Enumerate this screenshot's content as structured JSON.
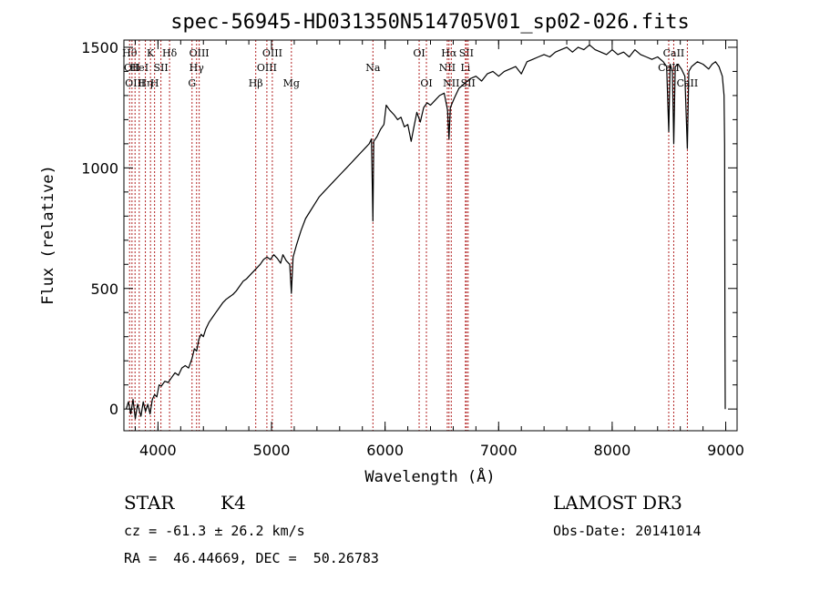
{
  "chart_data": {
    "type": "line",
    "title": "spec-56945-HD031350N514705V01_sp02-026.fits",
    "xlabel": "Wavelength (Å)",
    "ylabel": "Flux (relative)",
    "xlim": [
      3700,
      9100
    ],
    "ylim": [
      -90,
      1530
    ],
    "xticks": [
      4000,
      5000,
      6000,
      7000,
      8000,
      9000
    ],
    "yticks": [
      0,
      500,
      1000,
      1500
    ],
    "line_color": "#000000",
    "marker_color": "#b22222",
    "series": [
      {
        "name": "spectrum",
        "points": [
          [
            3720,
            0
          ],
          [
            3740,
            30
          ],
          [
            3760,
            -20
          ],
          [
            3780,
            40
          ],
          [
            3800,
            -40
          ],
          [
            3820,
            20
          ],
          [
            3850,
            -30
          ],
          [
            3870,
            30
          ],
          [
            3890,
            -10
          ],
          [
            3910,
            20
          ],
          [
            3930,
            -20
          ],
          [
            3950,
            40
          ],
          [
            3970,
            60
          ],
          [
            3990,
            50
          ],
          [
            4010,
            100
          ],
          [
            4030,
            95
          ],
          [
            4060,
            115
          ],
          [
            4090,
            110
          ],
          [
            4120,
            130
          ],
          [
            4150,
            150
          ],
          [
            4180,
            140
          ],
          [
            4210,
            170
          ],
          [
            4240,
            180
          ],
          [
            4270,
            170
          ],
          [
            4300,
            210
          ],
          [
            4320,
            250
          ],
          [
            4340,
            240
          ],
          [
            4360,
            290
          ],
          [
            4380,
            310
          ],
          [
            4400,
            300
          ],
          [
            4420,
            330
          ],
          [
            4450,
            360
          ],
          [
            4480,
            380
          ],
          [
            4510,
            400
          ],
          [
            4540,
            420
          ],
          [
            4570,
            440
          ],
          [
            4600,
            455
          ],
          [
            4630,
            465
          ],
          [
            4660,
            475
          ],
          [
            4690,
            490
          ],
          [
            4720,
            510
          ],
          [
            4750,
            530
          ],
          [
            4780,
            540
          ],
          [
            4810,
            555
          ],
          [
            4840,
            570
          ],
          [
            4870,
            585
          ],
          [
            4900,
            600
          ],
          [
            4930,
            620
          ],
          [
            4960,
            630
          ],
          [
            4990,
            620
          ],
          [
            5020,
            640
          ],
          [
            5050,
            625
          ],
          [
            5080,
            605
          ],
          [
            5100,
            640
          ],
          [
            5130,
            615
          ],
          [
            5160,
            600
          ],
          [
            5175,
            480
          ],
          [
            5190,
            630
          ],
          [
            5220,
            680
          ],
          [
            5260,
            740
          ],
          [
            5300,
            790
          ],
          [
            5340,
            820
          ],
          [
            5380,
            850
          ],
          [
            5420,
            880
          ],
          [
            5460,
            900
          ],
          [
            5500,
            920
          ],
          [
            5540,
            940
          ],
          [
            5580,
            960
          ],
          [
            5620,
            980
          ],
          [
            5660,
            1000
          ],
          [
            5700,
            1020
          ],
          [
            5740,
            1040
          ],
          [
            5780,
            1060
          ],
          [
            5820,
            1080
          ],
          [
            5860,
            1100
          ],
          [
            5880,
            1120
          ],
          [
            5893,
            780
          ],
          [
            5900,
            1110
          ],
          [
            5930,
            1130
          ],
          [
            5960,
            1160
          ],
          [
            5990,
            1180
          ],
          [
            6010,
            1260
          ],
          [
            6040,
            1240
          ],
          [
            6080,
            1220
          ],
          [
            6110,
            1200
          ],
          [
            6140,
            1210
          ],
          [
            6170,
            1170
          ],
          [
            6200,
            1180
          ],
          [
            6230,
            1110
          ],
          [
            6250,
            1160
          ],
          [
            6280,
            1230
          ],
          [
            6310,
            1190
          ],
          [
            6340,
            1250
          ],
          [
            6370,
            1270
          ],
          [
            6400,
            1260
          ],
          [
            6440,
            1280
          ],
          [
            6480,
            1300
          ],
          [
            6520,
            1310
          ],
          [
            6550,
            1240
          ],
          [
            6563,
            1120
          ],
          [
            6575,
            1250
          ],
          [
            6610,
            1290
          ],
          [
            6650,
            1330
          ],
          [
            6700,
            1350
          ],
          [
            6750,
            1370
          ],
          [
            6800,
            1380
          ],
          [
            6850,
            1360
          ],
          [
            6900,
            1390
          ],
          [
            6950,
            1400
          ],
          [
            7000,
            1380
          ],
          [
            7050,
            1400
          ],
          [
            7100,
            1410
          ],
          [
            7150,
            1420
          ],
          [
            7200,
            1390
          ],
          [
            7250,
            1440
          ],
          [
            7300,
            1450
          ],
          [
            7350,
            1460
          ],
          [
            7400,
            1470
          ],
          [
            7450,
            1460
          ],
          [
            7500,
            1480
          ],
          [
            7550,
            1490
          ],
          [
            7600,
            1500
          ],
          [
            7650,
            1480
          ],
          [
            7700,
            1500
          ],
          [
            7750,
            1490
          ],
          [
            7800,
            1510
          ],
          [
            7850,
            1490
          ],
          [
            7900,
            1480
          ],
          [
            7950,
            1470
          ],
          [
            8000,
            1490
          ],
          [
            8050,
            1470
          ],
          [
            8100,
            1480
          ],
          [
            8150,
            1460
          ],
          [
            8200,
            1490
          ],
          [
            8250,
            1470
          ],
          [
            8300,
            1460
          ],
          [
            8350,
            1450
          ],
          [
            8400,
            1460
          ],
          [
            8450,
            1440
          ],
          [
            8480,
            1420
          ],
          [
            8498,
            1150
          ],
          [
            8510,
            1430
          ],
          [
            8530,
            1400
          ],
          [
            8542,
            1100
          ],
          [
            8555,
            1420
          ],
          [
            8580,
            1430
          ],
          [
            8610,
            1410
          ],
          [
            8640,
            1380
          ],
          [
            8662,
            1080
          ],
          [
            8675,
            1400
          ],
          [
            8700,
            1420
          ],
          [
            8750,
            1440
          ],
          [
            8800,
            1430
          ],
          [
            8850,
            1410
          ],
          [
            8880,
            1430
          ],
          [
            8910,
            1440
          ],
          [
            8940,
            1420
          ],
          [
            8970,
            1380
          ],
          [
            8985,
            1300
          ],
          [
            8990,
            1100
          ],
          [
            8993,
            300
          ],
          [
            8996,
            0
          ]
        ]
      }
    ],
    "line_markers": [
      {
        "wl": 3750,
        "label": "Hθ",
        "row": 1
      },
      {
        "wl": 3771,
        "label": "OII",
        "row": 2
      },
      {
        "wl": 3798,
        "label": "OIII",
        "row": 3
      },
      {
        "wl": 3835,
        "label": "HeI",
        "row": 2
      },
      {
        "wl": 3889,
        "label": "Hη",
        "row": 3
      },
      {
        "wl": 3934,
        "label": "K",
        "row": 1
      },
      {
        "wl": 3970,
        "label": "H",
        "row": 3
      },
      {
        "wl": 4026,
        "label": "SII",
        "row": 2
      },
      {
        "wl": 4102,
        "label": "Hδ",
        "row": 1
      },
      {
        "wl": 4300,
        "label": "G",
        "row": 3
      },
      {
        "wl": 4340,
        "label": "Hγ",
        "row": 2
      },
      {
        "wl": 4363,
        "label": "OIII",
        "row": 1
      },
      {
        "wl": 4861,
        "label": "Hβ",
        "row": 3
      },
      {
        "wl": 4959,
        "label": "OIII",
        "row": 2
      },
      {
        "wl": 5007,
        "label": "OIII",
        "row": 1
      },
      {
        "wl": 5175,
        "label": "Mg",
        "row": 3
      },
      {
        "wl": 5893,
        "label": "Na",
        "row": 2
      },
      {
        "wl": 6300,
        "label": "OI",
        "row": 1
      },
      {
        "wl": 6364,
        "label": "OI",
        "row": 3
      },
      {
        "wl": 6548,
        "label": "NII",
        "row": 2
      },
      {
        "wl": 6563,
        "label": "Hα",
        "row": 1
      },
      {
        "wl": 6583,
        "label": "NII",
        "row": 3
      },
      {
        "wl": 6708,
        "label": "Li",
        "row": 2
      },
      {
        "wl": 6716,
        "label": "SII",
        "row": 1
      },
      {
        "wl": 6731,
        "label": "SII",
        "row": 3
      },
      {
        "wl": 8498,
        "label": "CaII",
        "row": 2
      },
      {
        "wl": 8542,
        "label": "CaII",
        "row": 1
      },
      {
        "wl": 8662,
        "label": "CaII",
        "row": 3
      }
    ]
  },
  "info": {
    "object_class": "STAR",
    "subclass": "K4",
    "survey": "LAMOST DR3",
    "redshift": "cz = -61.3 ± 26.2 km/s",
    "obs_date": "Obs-Date: 20141014",
    "coords": "RA =  46.44669, DEC =  50.26783"
  }
}
